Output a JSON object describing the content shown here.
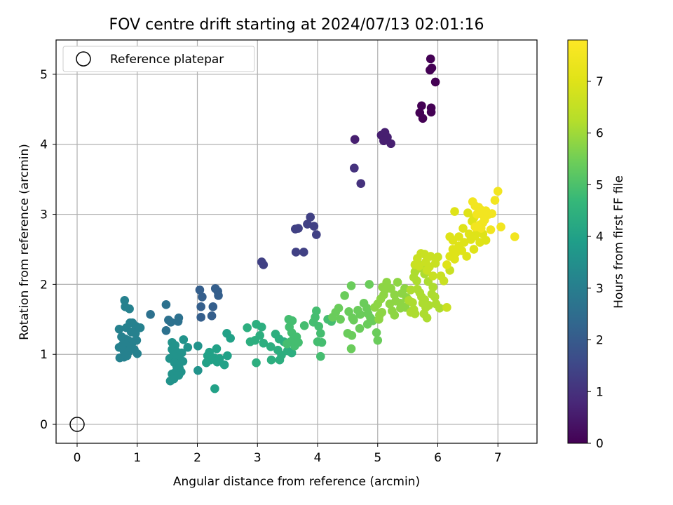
{
  "chart_data": {
    "type": "scatter",
    "title": "FOV centre drift starting at 2024/07/13 02:01:16",
    "xlabel": "Angular distance from reference (arcmin)",
    "ylabel": "Rotation from reference (arcmin)",
    "colorbar_label": "Hours from first FF file",
    "xlim": [
      -0.35,
      7.65
    ],
    "ylim": [
      -0.27,
      5.49
    ],
    "x_ticks": [
      "0",
      "1",
      "2",
      "3",
      "4",
      "5",
      "6",
      "7"
    ],
    "y_ticks": [
      "0",
      "1",
      "2",
      "3",
      "4",
      "5"
    ],
    "colorbar_ticks": [
      "0",
      "1",
      "2",
      "3",
      "4",
      "5",
      "6",
      "7"
    ],
    "colorbar_range": [
      0,
      7.8
    ],
    "colormap": "viridis",
    "grid": true,
    "legend_position": "top-left",
    "reference": {
      "label": "Reference platepar",
      "x": 0,
      "y": 0
    },
    "points_by_time": [
      [
        0.0,
        [
          [
            5.88,
            5.22
          ],
          [
            5.87,
            5.06
          ],
          [
            5.9,
            5.09
          ],
          [
            5.96,
            4.89
          ],
          [
            5.73,
            4.55
          ],
          [
            5.7,
            4.45
          ],
          [
            5.75,
            4.37
          ],
          [
            5.89,
            4.52
          ],
          [
            5.89,
            4.46
          ]
        ]
      ],
      [
        0.6,
        [
          [
            5.06,
            4.13
          ],
          [
            5.12,
            4.17
          ],
          [
            5.16,
            4.1
          ],
          [
            5.1,
            4.05
          ],
          [
            5.22,
            4.01
          ],
          [
            4.62,
            4.07
          ]
        ]
      ],
      [
        1.0,
        [
          [
            4.61,
            3.66
          ],
          [
            4.72,
            3.44
          ]
        ]
      ],
      [
        1.35,
        [
          [
            3.88,
            2.96
          ],
          [
            3.83,
            2.86
          ],
          [
            3.94,
            2.83
          ],
          [
            3.63,
            2.79
          ],
          [
            3.68,
            2.8
          ],
          [
            3.98,
            2.71
          ],
          [
            3.64,
            2.46
          ],
          [
            3.77,
            2.46
          ],
          [
            3.07,
            2.32
          ],
          [
            3.1,
            2.28
          ]
        ]
      ],
      [
        2.1,
        [
          [
            2.04,
            1.92
          ],
          [
            2.08,
            1.82
          ],
          [
            2.06,
            1.68
          ],
          [
            2.06,
            1.53
          ],
          [
            2.26,
            1.68
          ],
          [
            2.24,
            1.55
          ],
          [
            2.3,
            1.94
          ],
          [
            2.34,
            1.9
          ],
          [
            2.35,
            1.84
          ]
        ]
      ],
      [
        2.6,
        [
          [
            1.48,
            1.71
          ],
          [
            1.22,
            1.57
          ],
          [
            1.52,
            1.49
          ],
          [
            1.69,
            1.52
          ],
          [
            1.68,
            1.47
          ],
          [
            1.56,
            1.46
          ],
          [
            1.48,
            1.34
          ]
        ]
      ],
      [
        3.1,
        [
          [
            0.79,
            1.77
          ],
          [
            0.8,
            1.68
          ],
          [
            0.87,
            1.65
          ],
          [
            0.92,
            1.45
          ],
          [
            0.88,
            1.45
          ],
          [
            0.98,
            1.4
          ],
          [
            1.05,
            1.38
          ],
          [
            0.7,
            1.36
          ],
          [
            0.82,
            1.38
          ],
          [
            0.9,
            1.32
          ],
          [
            0.97,
            1.3
          ],
          [
            0.74,
            1.25
          ],
          [
            0.8,
            1.22
          ],
          [
            0.85,
            1.2
          ],
          [
            0.93,
            1.18
          ],
          [
            0.99,
            1.2
          ],
          [
            0.76,
            1.14
          ],
          [
            0.82,
            1.12
          ],
          [
            0.9,
            1.1
          ],
          [
            0.7,
            1.1
          ],
          [
            0.78,
            1.05
          ],
          [
            0.86,
            1.04
          ],
          [
            0.95,
            1.07
          ],
          [
            1.0,
            1.01
          ],
          [
            0.71,
            0.95
          ],
          [
            0.78,
            0.96
          ],
          [
            0.83,
            0.98
          ]
        ]
      ],
      [
        3.6,
        [
          [
            1.58,
            1.17
          ],
          [
            1.63,
            1.13
          ],
          [
            1.77,
            1.21
          ],
          [
            1.84,
            1.1
          ],
          [
            2.01,
            1.12
          ],
          [
            1.58,
            1.07
          ],
          [
            1.65,
            1.04
          ],
          [
            1.74,
            1.02
          ],
          [
            1.6,
            0.98
          ],
          [
            1.68,
            0.95
          ],
          [
            1.54,
            0.94
          ],
          [
            1.76,
            0.9
          ],
          [
            1.62,
            0.88
          ],
          [
            1.66,
            0.82
          ],
          [
            1.7,
            0.8
          ],
          [
            1.73,
            0.75
          ],
          [
            1.63,
            0.74
          ],
          [
            1.58,
            0.72
          ],
          [
            1.69,
            0.7
          ],
          [
            1.55,
            0.62
          ],
          [
            1.61,
            0.65
          ],
          [
            2.01,
            0.77
          ]
        ]
      ],
      [
        4.0,
        [
          [
            2.2,
            1.03
          ],
          [
            2.17,
            0.98
          ],
          [
            2.28,
            0.95
          ],
          [
            2.22,
            0.92
          ],
          [
            2.32,
            1.08
          ],
          [
            2.37,
            0.94
          ],
          [
            2.33,
            0.89
          ],
          [
            2.45,
            0.85
          ],
          [
            2.5,
            0.98
          ],
          [
            2.49,
            1.3
          ],
          [
            2.55,
            1.23
          ],
          [
            2.29,
            0.51
          ],
          [
            2.15,
            0.88
          ]
        ]
      ],
      [
        4.4,
        [
          [
            2.83,
            1.38
          ],
          [
            2.98,
            1.43
          ],
          [
            3.07,
            1.39
          ],
          [
            3.04,
            1.27
          ],
          [
            2.96,
            1.2
          ],
          [
            2.88,
            1.18
          ],
          [
            3.1,
            1.16
          ],
          [
            3.22,
            1.11
          ],
          [
            3.3,
            1.29
          ],
          [
            3.36,
            1.22
          ],
          [
            3.44,
            1.18
          ],
          [
            3.34,
            1.06
          ],
          [
            3.4,
            0.99
          ],
          [
            3.23,
            0.92
          ],
          [
            3.37,
            0.92
          ],
          [
            2.98,
            0.88
          ],
          [
            3.5,
            1.05
          ],
          [
            3.57,
            1.02
          ]
        ]
      ],
      [
        4.9,
        [
          [
            3.52,
            1.5
          ],
          [
            3.58,
            1.48
          ],
          [
            3.53,
            1.39
          ],
          [
            3.57,
            1.31
          ],
          [
            3.65,
            1.25
          ],
          [
            3.6,
            1.22
          ],
          [
            3.55,
            1.18
          ],
          [
            3.49,
            1.15
          ],
          [
            3.62,
            1.12
          ],
          [
            3.68,
            1.17
          ],
          [
            3.78,
            1.41
          ],
          [
            3.93,
            1.46
          ],
          [
            3.98,
            1.62
          ],
          [
            3.96,
            1.53
          ],
          [
            4.02,
            1.4
          ],
          [
            4.05,
            1.3
          ],
          [
            4.0,
            1.18
          ],
          [
            4.07,
            1.17
          ],
          [
            4.05,
            0.97
          ],
          [
            4.17,
            1.5
          ],
          [
            4.23,
            1.47
          ]
        ]
      ],
      [
        5.4,
        [
          [
            4.25,
            1.53
          ],
          [
            4.3,
            1.6
          ],
          [
            4.35,
            1.66
          ],
          [
            4.38,
            1.5
          ],
          [
            4.45,
            1.84
          ],
          [
            4.52,
            1.61
          ],
          [
            4.56,
            1.98
          ],
          [
            4.58,
            1.52
          ],
          [
            4.6,
            1.49
          ],
          [
            4.5,
            1.3
          ],
          [
            4.57,
            1.27
          ],
          [
            4.56,
            1.08
          ],
          [
            4.67,
            1.63
          ],
          [
            4.71,
            1.57
          ],
          [
            4.77,
            1.73
          ],
          [
            4.82,
            1.66
          ],
          [
            4.84,
            1.58
          ],
          [
            4.88,
            1.52
          ],
          [
            4.92,
            1.48
          ],
          [
            4.7,
            1.37
          ],
          [
            4.83,
            1.43
          ],
          [
            4.98,
            1.31
          ],
          [
            5.0,
            1.2
          ],
          [
            4.86,
            2.0
          ]
        ]
      ],
      [
        5.8,
        [
          [
            4.95,
            1.67
          ],
          [
            5.0,
            1.72
          ],
          [
            5.05,
            1.79
          ],
          [
            5.1,
            1.85
          ],
          [
            5.08,
            1.96
          ],
          [
            5.12,
            1.92
          ],
          [
            5.15,
            2.03
          ],
          [
            5.03,
            1.56
          ],
          [
            5.07,
            1.6
          ],
          [
            5.02,
            1.5
          ],
          [
            5.2,
            1.72
          ],
          [
            5.24,
            1.62
          ],
          [
            5.22,
            1.94
          ],
          [
            5.28,
            1.85
          ],
          [
            5.3,
            1.76
          ],
          [
            5.33,
            2.03
          ],
          [
            5.38,
            1.73
          ],
          [
            5.4,
            1.87
          ],
          [
            5.45,
            1.94
          ],
          [
            5.48,
            1.81
          ],
          [
            5.38,
            1.66
          ],
          [
            5.46,
            1.67
          ],
          [
            5.28,
            1.56
          ]
        ]
      ],
      [
        6.15,
        [
          [
            5.52,
            1.77
          ],
          [
            5.55,
            1.92
          ],
          [
            5.58,
            1.74
          ],
          [
            5.6,
            1.64
          ],
          [
            5.62,
            1.58
          ],
          [
            5.55,
            1.6
          ],
          [
            5.65,
            2.05
          ],
          [
            5.66,
            1.93
          ],
          [
            5.7,
            1.88
          ],
          [
            5.73,
            1.82
          ],
          [
            5.75,
            1.73
          ],
          [
            5.78,
            1.78
          ],
          [
            5.8,
            1.67
          ],
          [
            5.85,
            1.7
          ],
          [
            5.77,
            1.58
          ],
          [
            5.82,
            1.52
          ],
          [
            5.9,
            1.86
          ],
          [
            5.92,
            1.96
          ],
          [
            5.95,
            1.82
          ],
          [
            5.97,
            1.72
          ],
          [
            6.03,
            1.66
          ],
          [
            5.6,
            2.1
          ],
          [
            5.62,
            2.18
          ],
          [
            5.68,
            2.23
          ],
          [
            5.72,
            2.27
          ],
          [
            5.78,
            2.15
          ],
          [
            5.84,
            2.04
          ]
        ]
      ],
      [
        6.6,
        [
          [
            5.62,
            2.28
          ],
          [
            5.66,
            2.37
          ],
          [
            5.69,
            2.26
          ],
          [
            5.72,
            2.44
          ],
          [
            5.78,
            2.43
          ],
          [
            5.8,
            2.32
          ],
          [
            5.82,
            2.2
          ],
          [
            5.86,
            2.25
          ],
          [
            5.92,
            2.12
          ],
          [
            5.96,
            2.3
          ],
          [
            6.0,
            2.39
          ],
          [
            6.05,
            2.12
          ],
          [
            6.1,
            2.05
          ],
          [
            6.15,
            1.67
          ],
          [
            5.88,
            2.4
          ],
          [
            6.2,
            2.2
          ]
        ]
      ],
      [
        7.0,
        [
          [
            6.15,
            2.28
          ],
          [
            6.2,
            2.4
          ],
          [
            6.25,
            2.5
          ],
          [
            6.28,
            2.36
          ],
          [
            6.35,
            2.55
          ],
          [
            6.4,
            2.48
          ],
          [
            6.44,
            2.6
          ],
          [
            6.48,
            2.4
          ],
          [
            6.52,
            2.72
          ],
          [
            6.55,
            2.64
          ],
          [
            6.6,
            2.5
          ],
          [
            6.62,
            2.69
          ],
          [
            6.66,
            2.75
          ],
          [
            6.7,
            2.6
          ],
          [
            6.75,
            2.72
          ],
          [
            6.8,
            2.63
          ],
          [
            6.25,
            2.63
          ],
          [
            6.3,
            2.45
          ],
          [
            6.35,
            2.68
          ],
          [
            6.42,
            2.8
          ],
          [
            6.2,
            2.68
          ],
          [
            6.28,
            3.04
          ],
          [
            6.5,
            3.02
          ],
          [
            6.57,
            2.9
          ],
          [
            6.6,
            2.95
          ]
        ]
      ],
      [
        7.5,
        [
          [
            6.58,
            3.18
          ],
          [
            6.62,
            3.12
          ],
          [
            6.68,
            3.1
          ],
          [
            6.72,
            3.06
          ],
          [
            6.76,
            2.98
          ],
          [
            6.8,
            3.05
          ],
          [
            6.85,
            3.0
          ],
          [
            6.9,
            3.01
          ],
          [
            6.95,
            3.2
          ],
          [
            6.7,
            2.85
          ],
          [
            6.78,
            2.92
          ],
          [
            6.88,
            2.78
          ],
          [
            6.65,
            3.0
          ],
          [
            6.72,
            2.8
          ],
          [
            7.0,
            3.33
          ],
          [
            7.05,
            2.82
          ],
          [
            7.28,
            2.68
          ],
          [
            6.62,
            2.82
          ],
          [
            6.75,
            2.88
          ]
        ]
      ]
    ]
  }
}
